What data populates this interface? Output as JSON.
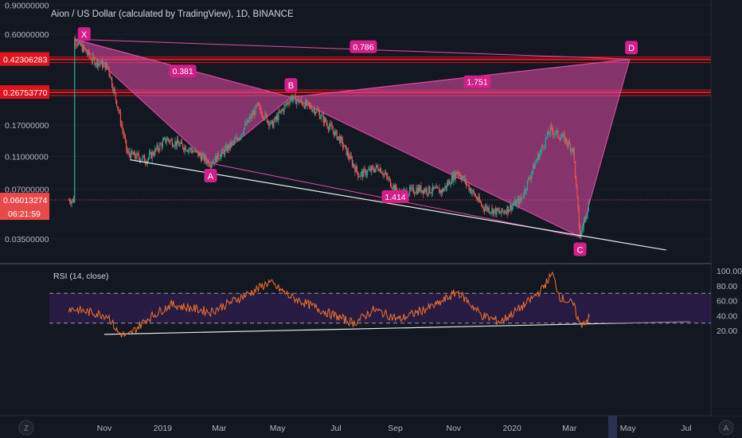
{
  "header": {
    "title": "Aion / US Dollar (calculated by TradingView), 1D, BINANCE"
  },
  "price_axis": {
    "ticks": [
      {
        "label": "0.90000000",
        "value": 0.9
      },
      {
        "label": "0.60000000",
        "value": 0.6
      },
      {
        "label": "0.17000000",
        "value": 0.17
      },
      {
        "label": "0.11000000",
        "value": 0.11
      },
      {
        "label": "0.07000000",
        "value": 0.07
      },
      {
        "label": "0.03500000",
        "value": 0.035
      }
    ],
    "hline_tags": [
      {
        "label": "0.42306283",
        "value": 0.42306283,
        "color": "#e0141e"
      },
      {
        "label": "0.26753770",
        "value": 0.2675377,
        "color": "#e0141e"
      }
    ],
    "last_price": {
      "label": "0.06013274",
      "value": 0.06013274,
      "color": "#e84a4a"
    },
    "countdown": "06:21:59"
  },
  "rsi": {
    "label": "RSI (14, close)",
    "axis_ticks": [
      "100.00",
      "80.00",
      "60.00",
      "40.00",
      "20.00"
    ],
    "upper_band": 70,
    "lower_band": 30,
    "line_color": "#f0712b",
    "band_fill": "#3b1f5e"
  },
  "time_axis": {
    "labels": [
      "Nov",
      "2019",
      "Mar",
      "May",
      "Jul",
      "Sep",
      "Nov",
      "2020",
      "Mar",
      "May",
      "Jul"
    ]
  },
  "pattern": {
    "points": [
      {
        "label": "X",
        "date": "2018-10-01",
        "price": 0.56
      },
      {
        "label": "A",
        "date": "2019-02-20",
        "price": 0.1
      },
      {
        "label": "B",
        "date": "2019-05-15",
        "price": 0.25
      },
      {
        "label": "C",
        "date": "2020-03-12",
        "price": 0.036
      },
      {
        "label": "D",
        "date": "2020-05-03",
        "price": 0.425
      }
    ],
    "ratios": [
      {
        "label": "0.381"
      },
      {
        "label": "1.751"
      },
      {
        "label": "0.786"
      },
      {
        "label": "1.414"
      }
    ],
    "color": "#e14ca8"
  },
  "chart_data": {
    "type": "line",
    "title": "Aion / US Dollar (calculated by TradingView), 1D, BINANCE",
    "y_scale": "log",
    "ylim": [
      0.028,
      0.9
    ],
    "x_range": [
      "2018-09-20",
      "2020-07-31"
    ],
    "series": [
      {
        "name": "",
        "note_type": "price",
        "points": [
          {
            "date": "2018-10-01",
            "value": 0.56
          },
          {
            "date": "2018-10-20",
            "value": 0.42
          },
          {
            "date": "2018-11-05",
            "value": 0.38
          },
          {
            "date": "2018-11-15",
            "value": 0.22
          },
          {
            "date": "2018-11-25",
            "value": 0.115
          },
          {
            "date": "2018-12-15",
            "value": 0.105
          },
          {
            "date": "2019-01-05",
            "value": 0.14
          },
          {
            "date": "2019-02-01",
            "value": 0.12
          },
          {
            "date": "2019-02-20",
            "value": 0.1
          },
          {
            "date": "2019-03-20",
            "value": 0.14
          },
          {
            "date": "2019-04-10",
            "value": 0.22
          },
          {
            "date": "2019-04-25",
            "value": 0.17
          },
          {
            "date": "2019-05-15",
            "value": 0.25
          },
          {
            "date": "2019-06-10",
            "value": 0.21
          },
          {
            "date": "2019-07-05",
            "value": 0.14
          },
          {
            "date": "2019-07-25",
            "value": 0.085
          },
          {
            "date": "2019-08-15",
            "value": 0.095
          },
          {
            "date": "2019-09-05",
            "value": 0.065
          },
          {
            "date": "2019-09-25",
            "value": 0.07
          },
          {
            "date": "2019-10-20",
            "value": 0.068
          },
          {
            "date": "2019-11-05",
            "value": 0.09
          },
          {
            "date": "2019-12-01",
            "value": 0.055
          },
          {
            "date": "2019-12-20",
            "value": 0.05
          },
          {
            "date": "2020-01-10",
            "value": 0.06
          },
          {
            "date": "2020-01-25",
            "value": 0.1
          },
          {
            "date": "2020-02-10",
            "value": 0.16
          },
          {
            "date": "2020-02-25",
            "value": 0.14
          },
          {
            "date": "2020-03-05",
            "value": 0.12
          },
          {
            "date": "2020-03-12",
            "value": 0.036
          },
          {
            "date": "2020-03-22",
            "value": 0.06
          }
        ]
      },
      {
        "name": "RSI (14, close)",
        "points": [
          {
            "date": "2018-09-25",
            "value": 50
          },
          {
            "date": "2018-10-15",
            "value": 45
          },
          {
            "date": "2018-11-05",
            "value": 40
          },
          {
            "date": "2018-11-15",
            "value": 18
          },
          {
            "date": "2018-11-25",
            "value": 12
          },
          {
            "date": "2018-12-15",
            "value": 35
          },
          {
            "date": "2019-01-10",
            "value": 55
          },
          {
            "date": "2019-02-20",
            "value": 45
          },
          {
            "date": "2019-04-05",
            "value": 72
          },
          {
            "date": "2019-04-22",
            "value": 85
          },
          {
            "date": "2019-05-15",
            "value": 65
          },
          {
            "date": "2019-06-20",
            "value": 45
          },
          {
            "date": "2019-07-20",
            "value": 30
          },
          {
            "date": "2019-08-10",
            "value": 48
          },
          {
            "date": "2019-09-05",
            "value": 35
          },
          {
            "date": "2019-10-15",
            "value": 55
          },
          {
            "date": "2019-11-05",
            "value": 72
          },
          {
            "date": "2019-12-01",
            "value": 40
          },
          {
            "date": "2019-12-20",
            "value": 32
          },
          {
            "date": "2020-01-15",
            "value": 55
          },
          {
            "date": "2020-02-01",
            "value": 75
          },
          {
            "date": "2020-02-12",
            "value": 96
          },
          {
            "date": "2020-02-20",
            "value": 65
          },
          {
            "date": "2020-03-05",
            "value": 55
          },
          {
            "date": "2020-03-12",
            "value": 28
          },
          {
            "date": "2020-03-22",
            "value": 37
          }
        ]
      }
    ]
  }
}
